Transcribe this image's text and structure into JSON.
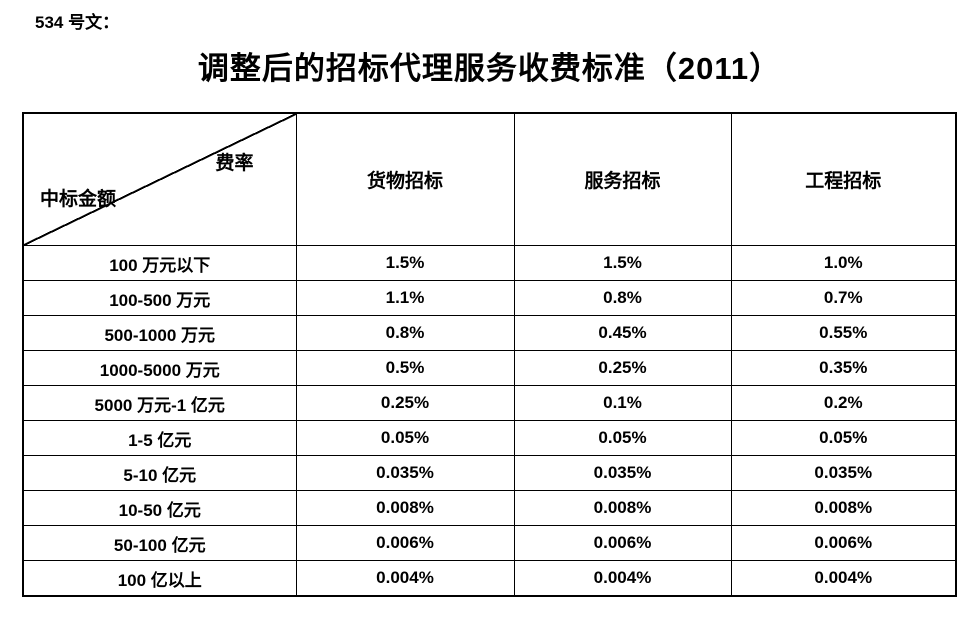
{
  "document": {
    "doc_label": "534 号文：",
    "title": "调整后的招标代理服务收费标准（2011）"
  },
  "table": {
    "corner": {
      "top_right": "费率",
      "bottom_left": "中标金额"
    },
    "columns": [
      "货物招标",
      "服务招标",
      "工程招标"
    ],
    "rows": [
      {
        "amount": "100 万元以下",
        "goods": "1.5%",
        "service": "1.5%",
        "engineering": "1.0%"
      },
      {
        "amount": "100-500 万元",
        "goods": "1.1%",
        "service": "0.8%",
        "engineering": "0.7%"
      },
      {
        "amount": "500-1000 万元",
        "goods": "0.8%",
        "service": "0.45%",
        "engineering": "0.55%"
      },
      {
        "amount": "1000-5000 万元",
        "goods": "0.5%",
        "service": "0.25%",
        "engineering": "0.35%"
      },
      {
        "amount": "5000 万元-1 亿元",
        "goods": "0.25%",
        "service": "0.1%",
        "engineering": "0.2%"
      },
      {
        "amount": "1-5 亿元",
        "goods": "0.05%",
        "service": "0.05%",
        "engineering": "0.05%"
      },
      {
        "amount": "5-10 亿元",
        "goods": "0.035%",
        "service": "0.035%",
        "engineering": "0.035%"
      },
      {
        "amount": "10-50 亿元",
        "goods": "0.008%",
        "service": "0.008%",
        "engineering": "0.008%"
      },
      {
        "amount": "50-100 亿元",
        "goods": "0.006%",
        "service": "0.006%",
        "engineering": "0.006%"
      },
      {
        "amount": "100 亿以上",
        "goods": "0.004%",
        "service": "0.004%",
        "engineering": "0.004%"
      }
    ]
  }
}
